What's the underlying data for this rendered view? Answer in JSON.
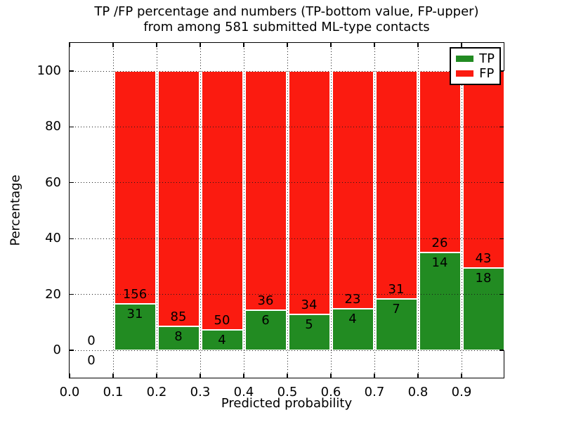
{
  "title": {
    "line1": "TP /FP percentage and numbers (TP-bottom value, FP-upper)",
    "line2": "from among 581 submitted ML-type contacts"
  },
  "axes": {
    "xlabel": "Predicted probability",
    "ylabel": "Percentage",
    "ytick_labels": [
      "0",
      "20",
      "40",
      "60",
      "80",
      "100"
    ],
    "xtick_labels": [
      "0.0",
      "0.1",
      "0.2",
      "0.3",
      "0.4",
      "0.5",
      "0.6",
      "0.7",
      "0.8",
      "0.9"
    ]
  },
  "legend": {
    "position": "upper right",
    "items": [
      {
        "label": "TP",
        "color": "#228b22"
      },
      {
        "label": "FP",
        "color": "#fb1b10"
      }
    ]
  },
  "colors": {
    "tp_green": "#228b22",
    "fp_red": "#fb1b10",
    "grid": "#1a1a1a",
    "axis": "#000000",
    "background": "#ffffff"
  },
  "chart_data": {
    "type": "bar",
    "stacked": true,
    "title": "TP /FP percentage and numbers (TP-bottom value, FP-upper) from among 581 submitted ML-type contacts",
    "xlabel": "Predicted probability",
    "ylabel": "Percentage",
    "x_bin_edges": [
      0.0,
      0.1,
      0.2,
      0.3,
      0.4,
      0.5,
      0.6,
      0.7,
      0.8,
      0.9,
      1.0
    ],
    "series": [
      {
        "name": "TP",
        "color": "#228b22",
        "counts": [
          0,
          31,
          8,
          4,
          6,
          5,
          4,
          7,
          14,
          18
        ]
      },
      {
        "name": "FP",
        "color": "#fb1b10",
        "counts": [
          0,
          156,
          85,
          50,
          36,
          34,
          23,
          31,
          26,
          43
        ]
      }
    ],
    "tp_percent_per_bin": [
      0,
      16.58,
      8.6,
      7.41,
      14.29,
      12.82,
      14.81,
      18.42,
      35.0,
      29.51
    ],
    "bar_annotations_note": "FP count printed just above TP/FP boundary, TP count just below; empty first bin annotated 0 and 0 at the zero line",
    "total_contacts": 581,
    "xlim": [
      0.0,
      1.0
    ],
    "ylim": [
      -10.3,
      110.1
    ],
    "yticks": [
      0,
      20,
      40,
      60,
      80,
      100
    ],
    "xticks": [
      0.0,
      0.1,
      0.2,
      0.3,
      0.4,
      0.5,
      0.6,
      0.7,
      0.8,
      0.9
    ],
    "grid": "dotted, drawn above bars",
    "legend_position": "upper right"
  }
}
